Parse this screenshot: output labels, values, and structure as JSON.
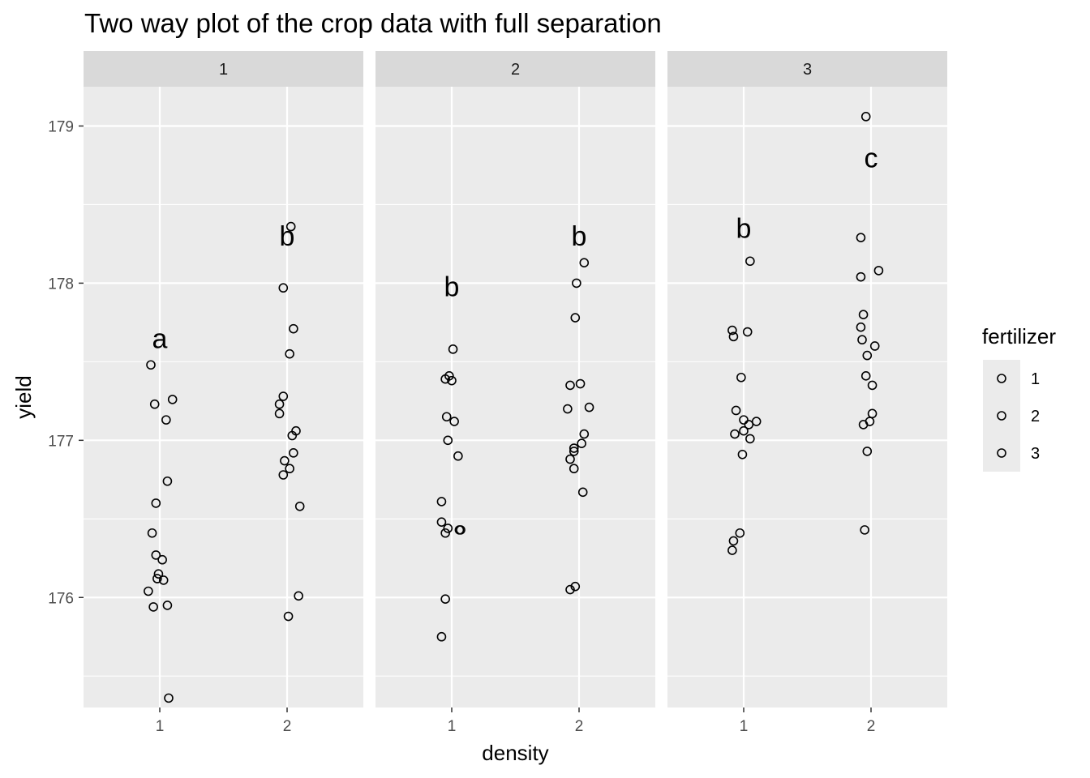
{
  "chart_data": {
    "type": "scatter",
    "title": "Two way plot of the crop data with full separation",
    "xlabel": "density",
    "ylabel": "yield",
    "x_categories": [
      "1",
      "2"
    ],
    "ylim": [
      175.3,
      179.25
    ],
    "y_ticks": [
      176,
      177,
      178,
      179
    ],
    "grid": true,
    "facet_variable": "block",
    "legend": {
      "title": "fertilizer",
      "entries": [
        "1",
        "2",
        "3"
      ],
      "placement": "right"
    },
    "panels": [
      {
        "label": "1",
        "groups": [
          {
            "density": "1",
            "letter": "a",
            "letter_y": 177.65,
            "points": [
              {
                "x": 0.93,
                "y": 177.48
              },
              {
                "x": 0.96,
                "y": 177.23
              },
              {
                "x": 1.1,
                "y": 177.26
              },
              {
                "x": 1.05,
                "y": 177.13
              },
              {
                "x": 1.06,
                "y": 176.74
              },
              {
                "x": 0.97,
                "y": 176.6
              },
              {
                "x": 0.94,
                "y": 176.41
              },
              {
                "x": 0.97,
                "y": 176.27
              },
              {
                "x": 1.02,
                "y": 176.24
              },
              {
                "x": 0.99,
                "y": 176.15
              },
              {
                "x": 0.98,
                "y": 176.12
              },
              {
                "x": 1.03,
                "y": 176.11
              },
              {
                "x": 0.91,
                "y": 176.04
              },
              {
                "x": 0.95,
                "y": 175.94
              },
              {
                "x": 1.06,
                "y": 175.95
              },
              {
                "x": 1.07,
                "y": 175.36
              }
            ]
          },
          {
            "density": "2",
            "letter": "b",
            "letter_y": 178.3,
            "points": [
              {
                "x": 2.03,
                "y": 178.36
              },
              {
                "x": 1.97,
                "y": 177.97
              },
              {
                "x": 2.05,
                "y": 177.71
              },
              {
                "x": 2.02,
                "y": 177.55
              },
              {
                "x": 1.97,
                "y": 177.28
              },
              {
                "x": 1.94,
                "y": 177.23
              },
              {
                "x": 1.94,
                "y": 177.17
              },
              {
                "x": 2.07,
                "y": 177.06
              },
              {
                "x": 2.04,
                "y": 177.03
              },
              {
                "x": 2.05,
                "y": 176.92
              },
              {
                "x": 1.98,
                "y": 176.87
              },
              {
                "x": 2.02,
                "y": 176.82
              },
              {
                "x": 1.97,
                "y": 176.78
              },
              {
                "x": 2.1,
                "y": 176.58
              },
              {
                "x": 2.09,
                "y": 176.01
              },
              {
                "x": 2.01,
                "y": 175.88
              }
            ]
          }
        ]
      },
      {
        "label": "2",
        "groups": [
          {
            "density": "1",
            "letter": "b",
            "letter_y": 177.98,
            "points": [
              {
                "x": 1.01,
                "y": 177.58
              },
              {
                "x": 0.98,
                "y": 177.41
              },
              {
                "x": 0.95,
                "y": 177.39
              },
              {
                "x": 1.0,
                "y": 177.38
              },
              {
                "x": 0.96,
                "y": 177.15
              },
              {
                "x": 1.02,
                "y": 177.12
              },
              {
                "x": 0.97,
                "y": 177.0
              },
              {
                "x": 1.05,
                "y": 176.9
              },
              {
                "x": 0.92,
                "y": 176.61
              },
              {
                "x": 0.92,
                "y": 176.48
              },
              {
                "x": 0.97,
                "y": 176.44
              },
              {
                "x": 0.95,
                "y": 176.41
              },
              {
                "x": 1.06,
                "y": 176.43
              },
              {
                "x": 1.07,
                "y": 176.43
              },
              {
                "x": 0.95,
                "y": 175.99
              },
              {
                "x": 0.92,
                "y": 175.75
              }
            ]
          },
          {
            "density": "2",
            "letter": "b",
            "letter_y": 178.3,
            "points": [
              {
                "x": 2.04,
                "y": 178.13
              },
              {
                "x": 1.98,
                "y": 178.0
              },
              {
                "x": 1.97,
                "y": 177.78
              },
              {
                "x": 1.93,
                "y": 177.35
              },
              {
                "x": 2.01,
                "y": 177.36
              },
              {
                "x": 1.91,
                "y": 177.2
              },
              {
                "x": 2.08,
                "y": 177.21
              },
              {
                "x": 2.04,
                "y": 177.04
              },
              {
                "x": 2.02,
                "y": 176.98
              },
              {
                "x": 1.96,
                "y": 176.95
              },
              {
                "x": 1.96,
                "y": 176.93
              },
              {
                "x": 1.93,
                "y": 176.88
              },
              {
                "x": 1.96,
                "y": 176.82
              },
              {
                "x": 2.03,
                "y": 176.67
              },
              {
                "x": 1.97,
                "y": 176.07
              },
              {
                "x": 1.93,
                "y": 176.05
              }
            ]
          }
        ]
      },
      {
        "label": "3",
        "groups": [
          {
            "density": "1",
            "letter": "b",
            "letter_y": 178.35,
            "points": [
              {
                "x": 1.05,
                "y": 178.14
              },
              {
                "x": 0.91,
                "y": 177.7
              },
              {
                "x": 1.03,
                "y": 177.69
              },
              {
                "x": 0.92,
                "y": 177.66
              },
              {
                "x": 0.98,
                "y": 177.4
              },
              {
                "x": 0.94,
                "y": 177.19
              },
              {
                "x": 1.0,
                "y": 177.13
              },
              {
                "x": 1.1,
                "y": 177.12
              },
              {
                "x": 1.04,
                "y": 177.1
              },
              {
                "x": 1.0,
                "y": 177.06
              },
              {
                "x": 0.93,
                "y": 177.04
              },
              {
                "x": 1.05,
                "y": 177.01
              },
              {
                "x": 0.99,
                "y": 176.91
              },
              {
                "x": 0.97,
                "y": 176.41
              },
              {
                "x": 0.92,
                "y": 176.36
              },
              {
                "x": 0.91,
                "y": 176.3
              }
            ]
          },
          {
            "density": "2",
            "letter": "c",
            "letter_y": 178.8,
            "points": [
              {
                "x": 1.96,
                "y": 179.06
              },
              {
                "x": 1.92,
                "y": 178.29
              },
              {
                "x": 2.06,
                "y": 178.08
              },
              {
                "x": 1.92,
                "y": 178.04
              },
              {
                "x": 1.94,
                "y": 177.8
              },
              {
                "x": 1.92,
                "y": 177.72
              },
              {
                "x": 1.93,
                "y": 177.64
              },
              {
                "x": 2.03,
                "y": 177.6
              },
              {
                "x": 1.97,
                "y": 177.54
              },
              {
                "x": 1.96,
                "y": 177.41
              },
              {
                "x": 2.01,
                "y": 177.35
              },
              {
                "x": 2.01,
                "y": 177.17
              },
              {
                "x": 1.99,
                "y": 177.12
              },
              {
                "x": 1.94,
                "y": 177.1
              },
              {
                "x": 1.97,
                "y": 176.93
              },
              {
                "x": 1.95,
                "y": 176.43
              }
            ]
          }
        ]
      }
    ]
  }
}
